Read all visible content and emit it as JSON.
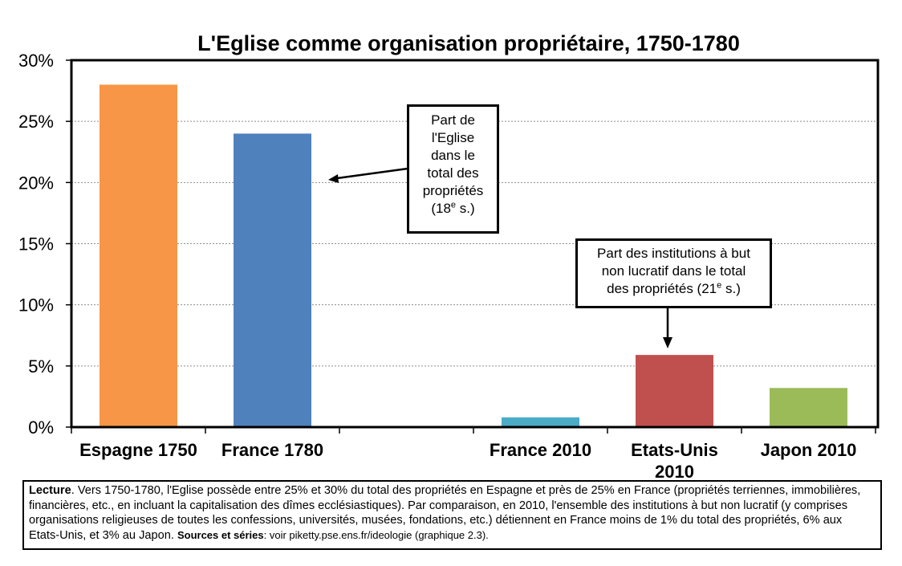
{
  "chart_data": {
    "type": "bar",
    "title": "L'Eglise comme organisation propriétaire, 1750-1780",
    "categories": [
      {
        "label_lines": [
          "Espagne 1750"
        ],
        "value": 28.0,
        "color": "#f79646",
        "slot": 0
      },
      {
        "label_lines": [
          "France 1780"
        ],
        "value": 24.0,
        "color": "#4f81bd",
        "slot": 1
      },
      {
        "label_lines": [
          "France 2010"
        ],
        "value": 0.8,
        "color": "#4bacc6",
        "slot": 3
      },
      {
        "label_lines": [
          "Etats-Unis",
          "2010"
        ],
        "value": 5.9,
        "color": "#c0504d",
        "slot": 4
      },
      {
        "label_lines": [
          "Japon 2010"
        ],
        "value": 3.2,
        "color": "#9bbb59",
        "slot": 5
      }
    ],
    "ylim": [
      0,
      30
    ],
    "yticks": [
      "0%",
      "5%",
      "10%",
      "15%",
      "20%",
      "25%",
      "30%"
    ],
    "grid": true,
    "annotations": [
      {
        "lines": [
          "Part de",
          "l'Eglise",
          "dans le",
          "total des",
          "propriétés"
        ],
        "last_line": {
          "before": "(18",
          "sup": "e",
          "after": " s.)"
        },
        "points_to": "France 1780"
      },
      {
        "lines": [
          "Part des institutions à but",
          "non lucratif dans le total"
        ],
        "last_line": {
          "before": "des propriétés (21",
          "sup": "e",
          "after": " s.)"
        },
        "points_to": "Etats-Unis 2010"
      }
    ]
  },
  "reading_note": {
    "label": "Lecture",
    "text": ". Vers 1750-1780, l'Eglise possède entre 25% et 30% du total des propriétés en Espagne et près de 25% en France (propriétés terriennes, immobilières, financières, etc., en incluant la capitalisation des dîmes ecclésiastiques). Par comparaison, en 2010, l'ensemble des institutions à but non lucratif (y comprises organisations religieuses de toutes les confessions, universités, musées, fondations, etc.) détiennent en France moins de 1% du total des propriétés, 6% aux Etats-Unis, et 3% au Japon. ",
    "sources_label": "Sources et séries",
    "sources_text": ": voir piketty.pse.ens.fr/ideologie (graphique 2.3)."
  }
}
